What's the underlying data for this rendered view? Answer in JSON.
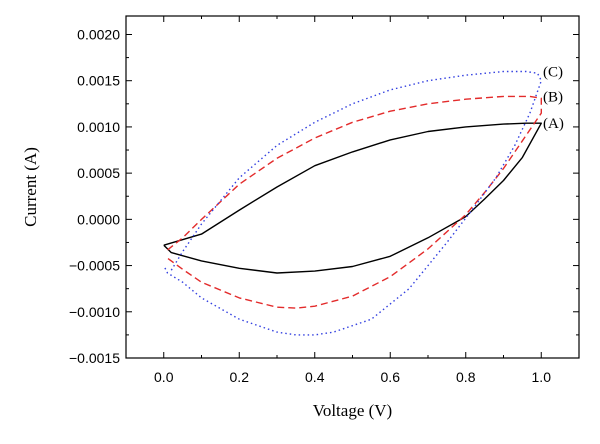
{
  "chart_data": {
    "type": "line",
    "title": "",
    "xlabel": "Voltage (V)",
    "ylabel": "Current (A)",
    "xlim": [
      -0.1,
      1.1
    ],
    "ylim": [
      -0.0015,
      0.0022
    ],
    "grid": false,
    "legend": "none",
    "xticks": [
      0.0,
      0.2,
      0.4,
      0.6,
      0.8,
      1.0
    ],
    "xtick_labels": [
      "0.0",
      "0.2",
      "0.4",
      "0.6",
      "0.8",
      "1.0"
    ],
    "yticks": [
      -0.0015,
      -0.001,
      -0.0005,
      0.0,
      0.0005,
      0.001,
      0.0015,
      0.002
    ],
    "ytick_labels": [
      "−0.0015",
      "−0.0010",
      "−0.0005",
      "0.0000",
      "0.0005",
      "0.0010",
      "0.0015",
      "0.0020"
    ],
    "series": [
      {
        "name": "(A)",
        "color": "#000000",
        "dash": "solid",
        "x": [
          0.0,
          0.1,
          0.2,
          0.3,
          0.4,
          0.5,
          0.6,
          0.7,
          0.8,
          0.9,
          0.96,
          0.99,
          1.0,
          0.95,
          0.9,
          0.85,
          0.8,
          0.7,
          0.6,
          0.5,
          0.4,
          0.3,
          0.2,
          0.1,
          0.02,
          0.0
        ],
        "y": [
          -0.00028,
          -0.00016,
          0.0001,
          0.00035,
          0.00058,
          0.00073,
          0.00086,
          0.00095,
          0.001,
          0.00103,
          0.00104,
          0.00104,
          0.00104,
          0.00067,
          0.00042,
          0.00022,
          3e-05,
          -0.0002,
          -0.0004,
          -0.00051,
          -0.00056,
          -0.00058,
          -0.00053,
          -0.00045,
          -0.00036,
          -0.00028
        ]
      },
      {
        "name": "(B)",
        "color": "#e32b2b",
        "dash": "dashed",
        "x": [
          0.01,
          0.05,
          0.1,
          0.2,
          0.3,
          0.4,
          0.5,
          0.6,
          0.7,
          0.8,
          0.9,
          0.97,
          1.0,
          1.0,
          0.95,
          0.9,
          0.85,
          0.8,
          0.7,
          0.6,
          0.5,
          0.4,
          0.35,
          0.3,
          0.2,
          0.1,
          0.05,
          0.01
        ],
        "y": [
          -0.00033,
          -0.0002,
          0.0,
          0.00038,
          0.00066,
          0.00088,
          0.00105,
          0.00117,
          0.00125,
          0.0013,
          0.00133,
          0.00133,
          0.00131,
          0.00115,
          0.00085,
          0.00055,
          0.00029,
          5e-05,
          -0.00032,
          -0.00062,
          -0.00083,
          -0.00094,
          -0.00096,
          -0.00095,
          -0.00085,
          -0.00068,
          -0.00054,
          -0.00042
        ]
      },
      {
        "name": "(C)",
        "color": "#3340e0",
        "dash": "dotted",
        "x": [
          0.02,
          0.05,
          0.1,
          0.2,
          0.3,
          0.4,
          0.5,
          0.6,
          0.7,
          0.8,
          0.9,
          0.96,
          0.99,
          1.0,
          0.97,
          0.93,
          0.88,
          0.82,
          0.75,
          0.65,
          0.55,
          0.45,
          0.4,
          0.35,
          0.3,
          0.2,
          0.1,
          0.05,
          0.01,
          0.0
        ],
        "y": [
          -0.00055,
          -0.00035,
          -5e-05,
          0.00045,
          0.0008,
          0.00105,
          0.00125,
          0.0014,
          0.0015,
          0.00156,
          0.0016,
          0.0016,
          0.00158,
          0.0015,
          0.00115,
          0.0008,
          0.00045,
          0.00012,
          -0.00025,
          -0.00075,
          -0.00108,
          -0.00122,
          -0.00125,
          -0.00125,
          -0.00122,
          -0.00108,
          -0.00085,
          -0.00068,
          -0.00058,
          -0.0005
        ]
      }
    ]
  }
}
